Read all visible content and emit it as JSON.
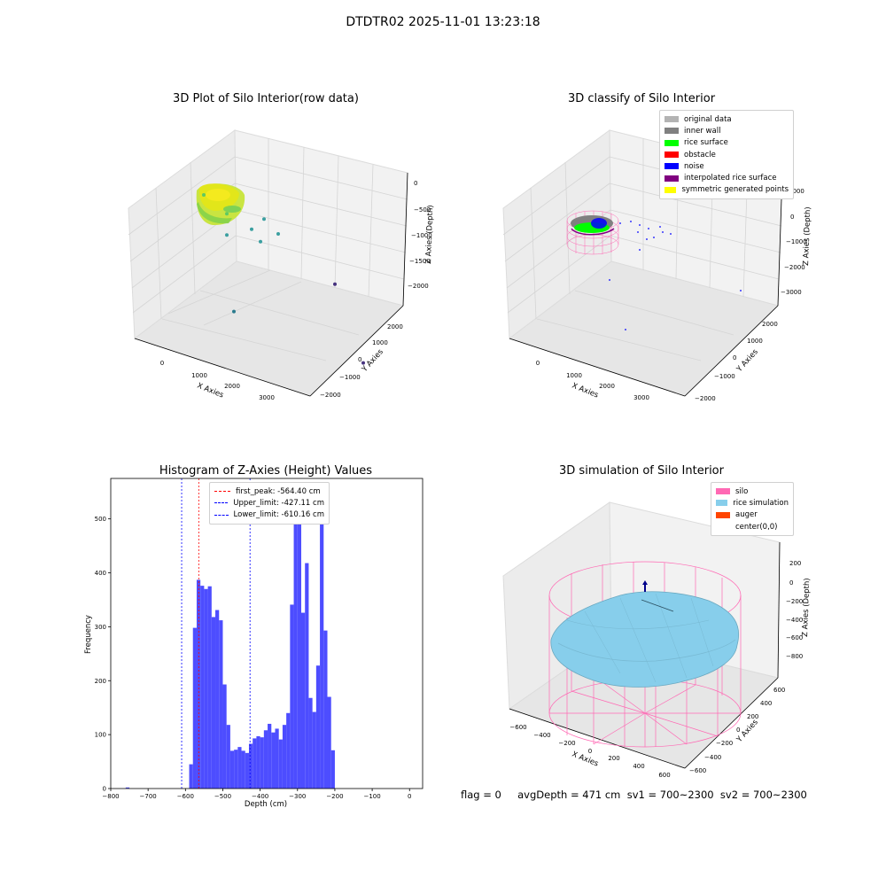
{
  "suptitle": "DTDTR02 2025-11-01 13:23:18",
  "footer": "flag = 0     avgDepth = 471 cm  sv1 = 700~2300  sv2 = 700~2300",
  "chart_data": [
    {
      "type": "scatter",
      "title": "3D Plot of Silo Interior(row data)",
      "xlabel": "X Axies",
      "ylabel": "Y Axies",
      "zlabel": "Z Axies (Depth)",
      "x_ticks": [
        "0",
        "1000",
        "2000",
        "3000"
      ],
      "y_ticks": [
        "2000",
        "1000",
        "0",
        "−1000",
        "−2000"
      ],
      "z_ticks": [
        "0",
        "−500",
        "−1000",
        "−1500",
        "−2000"
      ],
      "colormap": "viridis",
      "points": [
        {
          "x": 0,
          "y": 0,
          "z": -500
        },
        {
          "x": 400,
          "y": -100,
          "z": -700
        },
        {
          "x": 900,
          "y": 0,
          "z": -900
        },
        {
          "x": 1200,
          "y": 200,
          "z": -800
        },
        {
          "x": 1500,
          "y": 300,
          "z": -1000
        },
        {
          "x": 600,
          "y": 500,
          "z": -1100
        },
        {
          "x": 1300,
          "y": 700,
          "z": -1200
        },
        {
          "x": 300,
          "y": -800,
          "z": -1800
        },
        {
          "x": 2500,
          "y": -1500,
          "z": -2200
        },
        {
          "x": 3200,
          "y": 2200,
          "z": -2000
        }
      ]
    },
    {
      "type": "scatter",
      "title": "3D classify of Silo Interior",
      "zlabel": "Z Axies (Depth)",
      "xlabel": "X Axies",
      "ylabel": "Y Axies",
      "x_ticks": [
        "0",
        "1000",
        "2000",
        "3000"
      ],
      "y_ticks": [
        "2000",
        "1000",
        "0",
        "−1000",
        "−2000"
      ],
      "z_ticks": [
        "1000",
        "0",
        "−1000",
        "−2000",
        "−3000"
      ],
      "legend": [
        {
          "label": "original data",
          "color": "#b3b3b3"
        },
        {
          "label": "inner wall",
          "color": "#808080"
        },
        {
          "label": "rice surface",
          "color": "#00ff00"
        },
        {
          "label": "obstacle",
          "color": "#ff0000"
        },
        {
          "label": "noise",
          "color": "#0000ff"
        },
        {
          "label": "interpolated rice surface",
          "color": "#800080"
        },
        {
          "label": "symmetric generated points",
          "color": "#ffff00"
        }
      ]
    },
    {
      "type": "bar",
      "title": "Histogram of Z-Axies (Height) Values",
      "xlabel": "Depth (cm)",
      "ylabel": "Frequency",
      "xlim": [
        -800,
        35
      ],
      "ylim": [
        0,
        575
      ],
      "x_ticks": [
        -800,
        -700,
        -600,
        -500,
        -400,
        -300,
        -200,
        -100,
        0
      ],
      "x_tick_labels": [
        "−800",
        "−700",
        "−600",
        "−500",
        "−400",
        "−300",
        "−200",
        "−100",
        "0"
      ],
      "y_ticks": [
        0,
        100,
        200,
        300,
        400,
        500
      ],
      "bar_color": "#4d4dff",
      "bin_width": 10,
      "bins": [
        {
          "x": -760,
          "value": 2
        },
        {
          "x": -590,
          "value": 45
        },
        {
          "x": -580,
          "value": 298
        },
        {
          "x": -570,
          "value": 387
        },
        {
          "x": -560,
          "value": 376
        },
        {
          "x": -550,
          "value": 370
        },
        {
          "x": -540,
          "value": 375
        },
        {
          "x": -530,
          "value": 318
        },
        {
          "x": -520,
          "value": 331
        },
        {
          "x": -510,
          "value": 312
        },
        {
          "x": -500,
          "value": 193
        },
        {
          "x": -490,
          "value": 118
        },
        {
          "x": -480,
          "value": 70
        },
        {
          "x": -470,
          "value": 72
        },
        {
          "x": -460,
          "value": 77
        },
        {
          "x": -450,
          "value": 70
        },
        {
          "x": -440,
          "value": 66
        },
        {
          "x": -430,
          "value": 83
        },
        {
          "x": -420,
          "value": 93
        },
        {
          "x": -410,
          "value": 97
        },
        {
          "x": -400,
          "value": 95
        },
        {
          "x": -390,
          "value": 108
        },
        {
          "x": -380,
          "value": 120
        },
        {
          "x": -370,
          "value": 104
        },
        {
          "x": -360,
          "value": 111
        },
        {
          "x": -350,
          "value": 91
        },
        {
          "x": -340,
          "value": 118
        },
        {
          "x": -330,
          "value": 140
        },
        {
          "x": -320,
          "value": 341
        },
        {
          "x": -310,
          "value": 543
        },
        {
          "x": -300,
          "value": 546
        },
        {
          "x": -290,
          "value": 326
        },
        {
          "x": -280,
          "value": 418
        },
        {
          "x": -270,
          "value": 168
        },
        {
          "x": -260,
          "value": 142
        },
        {
          "x": -250,
          "value": 228
        },
        {
          "x": -240,
          "value": 546
        },
        {
          "x": -230,
          "value": 293
        },
        {
          "x": -220,
          "value": 170
        },
        {
          "x": -210,
          "value": 71
        }
      ],
      "vlines": [
        {
          "label": "first_peak: -564.40 cm",
          "x": -564.4,
          "color": "#ff0000"
        },
        {
          "label": "Upper_limit: -427.11 cm",
          "x": -427.11,
          "color": "#0000ff"
        },
        {
          "label": "Lower_limit: -610.16 cm",
          "x": -610.16,
          "color": "#0000ff"
        }
      ]
    },
    {
      "type": "area",
      "title": "3D simulation of Silo Interior",
      "xlabel": "X Axies",
      "ylabel": "Y Axies",
      "zlabel": "Z Axies (Depth)",
      "x_ticks": [
        "−600",
        "−400",
        "−200",
        "0",
        "200",
        "400",
        "600"
      ],
      "y_ticks": [
        "600",
        "400",
        "200",
        "0",
        "−200",
        "−400",
        "−600"
      ],
      "z_ticks": [
        "200",
        "0",
        "−200",
        "−400",
        "−600",
        "−800"
      ],
      "legend": [
        {
          "label": "silo",
          "color": "#ff69b4"
        },
        {
          "label": "rice simulation",
          "color": "#87ceeb"
        },
        {
          "label": "auger",
          "color": "#ff4500"
        },
        {
          "label": "center(0,0)",
          "color": ""
        }
      ]
    }
  ]
}
